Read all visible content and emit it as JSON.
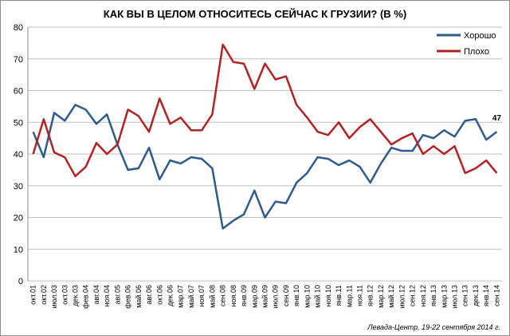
{
  "chart_data": {
    "type": "line",
    "title": "КАК ВЫ В ЦЕЛОМ ОТНОСИТЕСЬ СЕЙЧАС К ГРУЗИИ? (В %)",
    "footnote": "Левада-Центр, 19-22 сентября 2014 г.",
    "annotation": "47",
    "categories": [
      "окт.01",
      "окт.02",
      "июл.03",
      "окт.03",
      "дек.03",
      "фев.04",
      "авг.04",
      "ноя.04",
      "авг.05",
      "фев.06",
      "май.06",
      "авг.06",
      "окт.06",
      "дек.06",
      "мар.07",
      "май.07",
      "ноя.07",
      "май.08",
      "сен.08",
      "ноя.08",
      "янв.09",
      "мар.09",
      "май.09",
      "июл.09",
      "сен.09",
      "янв.10",
      "мар.10",
      "май.10",
      "ноя.10",
      "янв.11",
      "мар.11",
      "ноя.11",
      "янв.12",
      "мар.12",
      "май.12",
      "июл.12",
      "сен.12",
      "ноя.12",
      "янв.13",
      "мар.13",
      "июл.13",
      "сен.13",
      "дек.13",
      "янв.14",
      "сен.14"
    ],
    "series": [
      {
        "name": "Хорошо",
        "color": "#2e5a8c",
        "values": [
          47,
          39,
          53,
          50.5,
          55.5,
          54,
          49.5,
          52.5,
          43,
          35,
          35.5,
          42,
          32,
          38,
          37,
          39,
          38.5,
          35.5,
          16.5,
          19,
          21,
          28.5,
          20,
          25,
          24.5,
          31,
          34,
          39,
          38.5,
          36.5,
          38,
          36,
          31,
          37,
          42,
          41,
          41,
          46,
          45,
          47.5,
          45.5,
          50.5,
          51,
          44.5,
          47
        ]
      },
      {
        "name": "Плохо",
        "color": "#b22222",
        "values": [
          40,
          51,
          40.5,
          39,
          33,
          36,
          43.5,
          40,
          43,
          54,
          52,
          47,
          57.5,
          49.5,
          51.5,
          47.5,
          47.5,
          52.5,
          74.5,
          69,
          68.5,
          60.5,
          68.5,
          63.5,
          64.5,
          55.5,
          51.5,
          47,
          46,
          50,
          45,
          48.5,
          51,
          47,
          43,
          45,
          46.5,
          40,
          42.5,
          40,
          42.5,
          34,
          35.5,
          38,
          34
        ]
      }
    ],
    "ylim": [
      0,
      80
    ],
    "yticks": [
      0,
      10,
      20,
      30,
      40,
      50,
      60,
      70,
      80
    ],
    "grid": true,
    "legend": "top-right"
  }
}
